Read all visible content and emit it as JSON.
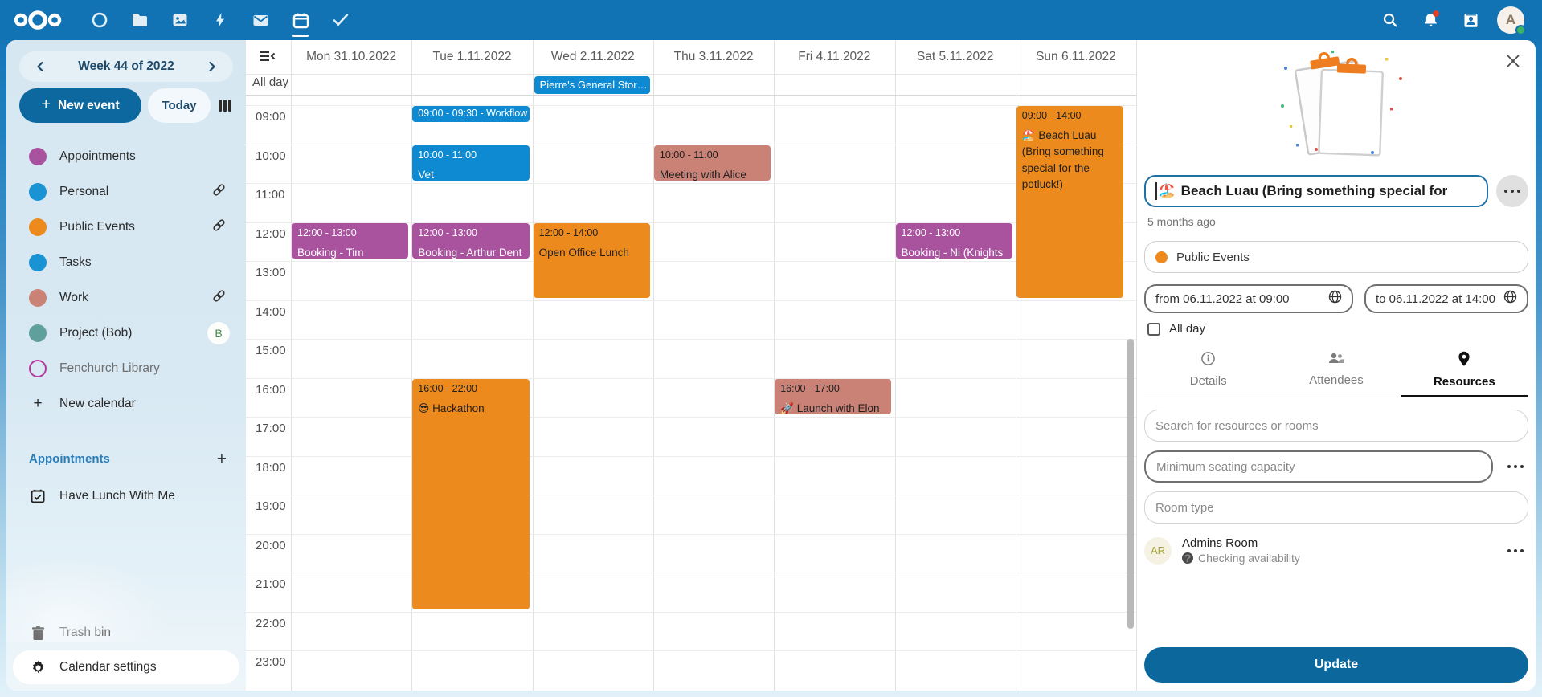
{
  "header": {
    "app_icons": [
      "dashboard",
      "files",
      "photos",
      "activity",
      "mail",
      "calendar",
      "tasks"
    ],
    "active_app": "calendar",
    "avatar_initial": "A",
    "brand_color": "#1173b4"
  },
  "sidebar": {
    "week_title": "Week 44 of 2022",
    "new_event_label": "New event",
    "today_label": "Today",
    "calendars": [
      {
        "name": "Appointments",
        "color": "#a9539f"
      },
      {
        "name": "Personal",
        "color": "#1a93d4",
        "shared": true
      },
      {
        "name": "Public Events",
        "color": "#ec8a1e",
        "shared": true
      },
      {
        "name": "Tasks",
        "color": "#1a93d4"
      },
      {
        "name": "Work",
        "color": "#ca8277",
        "shared": true
      },
      {
        "name": "Project (Bob)",
        "color": "#5f9f9c",
        "badge": "B"
      },
      {
        "name": "Fenchurch Library",
        "color": "#b23a9c",
        "outlined": true
      }
    ],
    "new_calendar_label": "New calendar",
    "appointments_heading": "Appointments",
    "appointment_items": [
      "Have Lunch With Me"
    ],
    "trash_label": "Trash bin",
    "settings_label": "Calendar settings"
  },
  "calendar": {
    "day_headers": [
      "Mon 31.10.2022",
      "Tue 1.11.2022",
      "Wed 2.11.2022",
      "Thu 3.11.2022",
      "Fri 4.11.2022",
      "Sat 5.11.2022",
      "Sun 6.11.2022"
    ],
    "all_day_label": "All day",
    "hours": [
      "09:00",
      "10:00",
      "11:00",
      "12:00",
      "13:00",
      "14:00",
      "15:00",
      "16:00",
      "17:00",
      "18:00",
      "19:00",
      "20:00",
      "21:00",
      "22:00",
      "23:00"
    ],
    "all_day_events": [
      {
        "day": 2,
        "title": "Pierre's General Stor…",
        "color": "blue"
      }
    ],
    "events": [
      {
        "day": 0,
        "start": "12:00",
        "end": "13:00",
        "time_label": "12:00 - 13:00",
        "title": "Booking - Tim (Wizard)",
        "color": "purple"
      },
      {
        "day": 1,
        "start": "09:00",
        "end": "09:30",
        "time_label": "09:00 - 09:30",
        "title": "Workflow",
        "color": "blue",
        "compact": true
      },
      {
        "day": 1,
        "start": "10:00",
        "end": "11:00",
        "time_label": "10:00 - 11:00",
        "title": "Vet",
        "color": "blue"
      },
      {
        "day": 1,
        "start": "12:00",
        "end": "13:00",
        "time_label": "12:00 - 13:00",
        "title": "Booking - Arthur Dent",
        "color": "purple"
      },
      {
        "day": 1,
        "start": "16:00",
        "end": "22:00",
        "time_label": "16:00 - 22:00",
        "title": "😎 Hackathon",
        "color": "orange"
      },
      {
        "day": 2,
        "start": "12:00",
        "end": "14:00",
        "time_label": "12:00 - 14:00",
        "title": "Open Office Lunch",
        "color": "orange"
      },
      {
        "day": 3,
        "start": "10:00",
        "end": "11:00",
        "time_label": "10:00 - 11:00",
        "title": "Meeting with Alice",
        "color": "salmon"
      },
      {
        "day": 4,
        "start": "16:00",
        "end": "17:00",
        "time_label": "16:00 - 17:00",
        "title": "🚀 Launch with Elon",
        "color": "salmon"
      },
      {
        "day": 5,
        "start": "12:00",
        "end": "13:00",
        "time_label": "12:00 - 13:00",
        "title": "Booking - Ni (Knights",
        "color": "purple"
      },
      {
        "day": 6,
        "start": "09:00",
        "end": "14:00",
        "time_label": "09:00 - 14:00",
        "title": "🏖️ Beach Luau (Bring something special for the potluck!)",
        "color": "orange"
      }
    ],
    "event_colors": {
      "blue": {
        "bg": "#0d8ad2",
        "fg": "#ffffff"
      },
      "purple": {
        "bg": "#a9539f",
        "fg": "#ffffff"
      },
      "orange": {
        "bg": "#ec8a1e",
        "fg": "#1f1f1f"
      },
      "salmon": {
        "bg": "#ca8277",
        "fg": "#1f1f1f"
      }
    }
  },
  "panel": {
    "title_emoji": "🏖️",
    "title": "Beach Luau (Bring something special for",
    "last_edited": "5 months ago",
    "calendar_select": "Public Events",
    "calendar_select_color": "#ec8a1e",
    "from_label": "from 06.11.2022 at 09:00",
    "to_label": "to 06.11.2022 at 14:00",
    "all_day_label": "All day",
    "tabs": [
      {
        "label": "Details"
      },
      {
        "label": "Attendees"
      },
      {
        "label": "Resources",
        "active": true
      }
    ],
    "search_placeholder": "Search for resources or rooms",
    "seating_placeholder": "Minimum seating capacity",
    "room_type_placeholder": "Room type",
    "resource": {
      "initials": "AR",
      "name": "Admins Room",
      "status": "Checking availability"
    },
    "update_label": "Update"
  }
}
